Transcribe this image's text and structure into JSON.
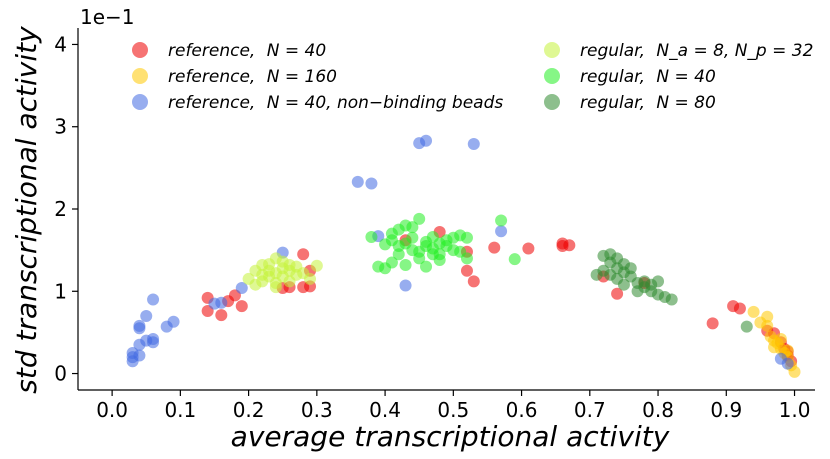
{
  "chart_data": {
    "type": "scatter",
    "title": "",
    "xlabel": "average transcriptional activity",
    "ylabel": "std transcriptional activity",
    "y_offset_text": "1e−1",
    "xlim": [
      -0.05,
      1.03
    ],
    "ylim": [
      -0.2,
      4.2
    ],
    "x_ticks": [
      0.0,
      0.1,
      0.2,
      0.3,
      0.4,
      0.5,
      0.6,
      0.7,
      0.8,
      0.9,
      1.0
    ],
    "x_tick_labels": [
      "0.0",
      "0.1",
      "0.2",
      "0.3",
      "0.4",
      "0.5",
      "0.6",
      "0.7",
      "0.8",
      "0.9",
      "1.0"
    ],
    "y_ticks": [
      0,
      1,
      2,
      3,
      4
    ],
    "y_tick_labels": [
      "0",
      "1",
      "2",
      "3",
      "4"
    ],
    "legend_position": "top",
    "series": [
      {
        "name": "reference_N40",
        "label_prefix": "reference,",
        "label_detail": "N = 40",
        "color": "#ee0000",
        "points": [
          [
            0.14,
            0.92
          ],
          [
            0.14,
            0.76
          ],
          [
            0.16,
            0.71
          ],
          [
            0.17,
            0.88
          ],
          [
            0.18,
            0.95
          ],
          [
            0.19,
            0.82
          ],
          [
            0.25,
            1.04
          ],
          [
            0.26,
            1.05
          ],
          [
            0.28,
            1.45
          ],
          [
            0.28,
            1.05
          ],
          [
            0.29,
            1.06
          ],
          [
            0.29,
            1.25
          ],
          [
            0.43,
            1.62
          ],
          [
            0.48,
            1.72
          ],
          [
            0.52,
            1.48
          ],
          [
            0.52,
            1.25
          ],
          [
            0.53,
            1.12
          ],
          [
            0.56,
            1.53
          ],
          [
            0.61,
            1.52
          ],
          [
            0.66,
            1.58
          ],
          [
            0.66,
            1.55
          ],
          [
            0.67,
            1.56
          ],
          [
            0.72,
            1.18
          ],
          [
            0.74,
            0.97
          ],
          [
            0.78,
            1.1
          ],
          [
            0.88,
            0.61
          ],
          [
            0.91,
            0.82
          ],
          [
            0.92,
            0.79
          ],
          [
            0.96,
            0.52
          ],
          [
            0.97,
            0.49
          ],
          [
            0.98,
            0.38
          ],
          [
            0.985,
            0.3
          ],
          [
            0.99,
            0.27
          ],
          [
            0.99,
            0.22
          ],
          [
            0.995,
            0.15
          ]
        ]
      },
      {
        "name": "reference_N160",
        "label_prefix": "reference,",
        "label_detail": "N = 160",
        "color": "#ffc800",
        "points": [
          [
            0.94,
            0.75
          ],
          [
            0.95,
            0.62
          ],
          [
            0.96,
            0.69
          ],
          [
            0.96,
            0.58
          ],
          [
            0.965,
            0.45
          ],
          [
            0.97,
            0.4
          ],
          [
            0.97,
            0.32
          ],
          [
            0.975,
            0.37
          ],
          [
            0.98,
            0.3
          ],
          [
            0.985,
            0.25
          ],
          [
            0.99,
            0.2
          ],
          [
            0.995,
            0.1
          ],
          [
            1.0,
            0.02
          ],
          [
            0.99,
            0.28
          ],
          [
            0.98,
            0.42
          ]
        ]
      },
      {
        "name": "reference_N40_nonbinding",
        "label_prefix": "reference,",
        "label_detail": "N = 40,  non−binding beads",
        "color": "#4169e1",
        "points": [
          [
            0.03,
            0.15
          ],
          [
            0.03,
            0.2
          ],
          [
            0.03,
            0.25
          ],
          [
            0.04,
            0.22
          ],
          [
            0.04,
            0.35
          ],
          [
            0.04,
            0.55
          ],
          [
            0.04,
            0.58
          ],
          [
            0.05,
            0.7
          ],
          [
            0.05,
            0.4
          ],
          [
            0.06,
            0.42
          ],
          [
            0.06,
            0.38
          ],
          [
            0.06,
            0.9
          ],
          [
            0.08,
            0.57
          ],
          [
            0.09,
            0.63
          ],
          [
            0.15,
            0.85
          ],
          [
            0.16,
            0.86
          ],
          [
            0.19,
            1.04
          ],
          [
            0.25,
            1.47
          ],
          [
            0.36,
            2.33
          ],
          [
            0.38,
            2.31
          ],
          [
            0.39,
            1.67
          ],
          [
            0.43,
            1.07
          ],
          [
            0.45,
            2.8
          ],
          [
            0.46,
            2.83
          ],
          [
            0.53,
            2.79
          ],
          [
            0.57,
            1.73
          ],
          [
            0.98,
            0.18
          ],
          [
            0.99,
            0.12
          ]
        ]
      },
      {
        "name": "regular_Na8_Np32",
        "label_prefix": "regular,",
        "label_detail": "N_a = 8, N_p = 32",
        "color": "#c4f23a",
        "points": [
          [
            0.2,
            1.15
          ],
          [
            0.21,
            1.08
          ],
          [
            0.22,
            1.32
          ],
          [
            0.22,
            1.12
          ],
          [
            0.23,
            1.25
          ],
          [
            0.23,
            1.18
          ],
          [
            0.23,
            1.33
          ],
          [
            0.24,
            1.22
          ],
          [
            0.24,
            1.4
          ],
          [
            0.24,
            1.1
          ],
          [
            0.25,
            1.28
          ],
          [
            0.25,
            1.36
          ],
          [
            0.25,
            1.18
          ],
          [
            0.26,
            1.25
          ],
          [
            0.26,
            1.32
          ],
          [
            0.26,
            1.12
          ],
          [
            0.27,
            1.2
          ],
          [
            0.27,
            1.3
          ],
          [
            0.28,
            1.22
          ],
          [
            0.29,
            1.15
          ],
          [
            0.3,
            1.31
          ],
          [
            0.24,
            1.05
          ],
          [
            0.22,
            1.2
          ],
          [
            0.21,
            1.25
          ]
        ]
      },
      {
        "name": "regular_N40",
        "label_prefix": "regular,",
        "label_detail": "N = 40",
        "color": "#22ee22",
        "points": [
          [
            0.38,
            1.66
          ],
          [
            0.39,
            1.3
          ],
          [
            0.4,
            1.57
          ],
          [
            0.4,
            1.28
          ],
          [
            0.41,
            1.62
          ],
          [
            0.41,
            1.35
          ],
          [
            0.42,
            1.45
          ],
          [
            0.42,
            1.55
          ],
          [
            0.42,
            1.75
          ],
          [
            0.43,
            1.58
          ],
          [
            0.43,
            1.32
          ],
          [
            0.44,
            1.5
          ],
          [
            0.44,
            1.65
          ],
          [
            0.44,
            1.78
          ],
          [
            0.45,
            1.48
          ],
          [
            0.45,
            1.4
          ],
          [
            0.45,
            1.88
          ],
          [
            0.46,
            1.55
          ],
          [
            0.46,
            1.6
          ],
          [
            0.46,
            1.3
          ],
          [
            0.47,
            1.52
          ],
          [
            0.47,
            1.45
          ],
          [
            0.47,
            1.66
          ],
          [
            0.48,
            1.58
          ],
          [
            0.48,
            1.45
          ],
          [
            0.48,
            1.38
          ],
          [
            0.49,
            1.62
          ],
          [
            0.49,
            1.55
          ],
          [
            0.5,
            1.5
          ],
          [
            0.5,
            1.65
          ],
          [
            0.51,
            1.48
          ],
          [
            0.51,
            1.68
          ],
          [
            0.52,
            1.65
          ],
          [
            0.52,
            1.4
          ],
          [
            0.57,
            1.86
          ],
          [
            0.59,
            1.39
          ],
          [
            0.43,
            1.8
          ],
          [
            0.41,
            1.7
          ]
        ]
      },
      {
        "name": "regular_N80",
        "label_prefix": "regular,",
        "label_detail": "N = 80",
        "color": "#2f8a2f",
        "points": [
          [
            0.71,
            1.2
          ],
          [
            0.72,
            1.25
          ],
          [
            0.72,
            1.43
          ],
          [
            0.73,
            1.35
          ],
          [
            0.73,
            1.2
          ],
          [
            0.74,
            1.4
          ],
          [
            0.74,
            1.28
          ],
          [
            0.74,
            1.15
          ],
          [
            0.75,
            1.33
          ],
          [
            0.75,
            1.23
          ],
          [
            0.75,
            1.08
          ],
          [
            0.76,
            1.18
          ],
          [
            0.76,
            1.28
          ],
          [
            0.77,
            1.1
          ],
          [
            0.77,
            1.0
          ],
          [
            0.78,
            1.12
          ],
          [
            0.78,
            1.05
          ],
          [
            0.79,
            1.0
          ],
          [
            0.79,
            1.08
          ],
          [
            0.8,
            1.12
          ],
          [
            0.8,
            0.96
          ],
          [
            0.81,
            0.93
          ],
          [
            0.82,
            0.9
          ],
          [
            0.93,
            0.57
          ],
          [
            0.73,
            1.45
          ]
        ]
      }
    ]
  }
}
